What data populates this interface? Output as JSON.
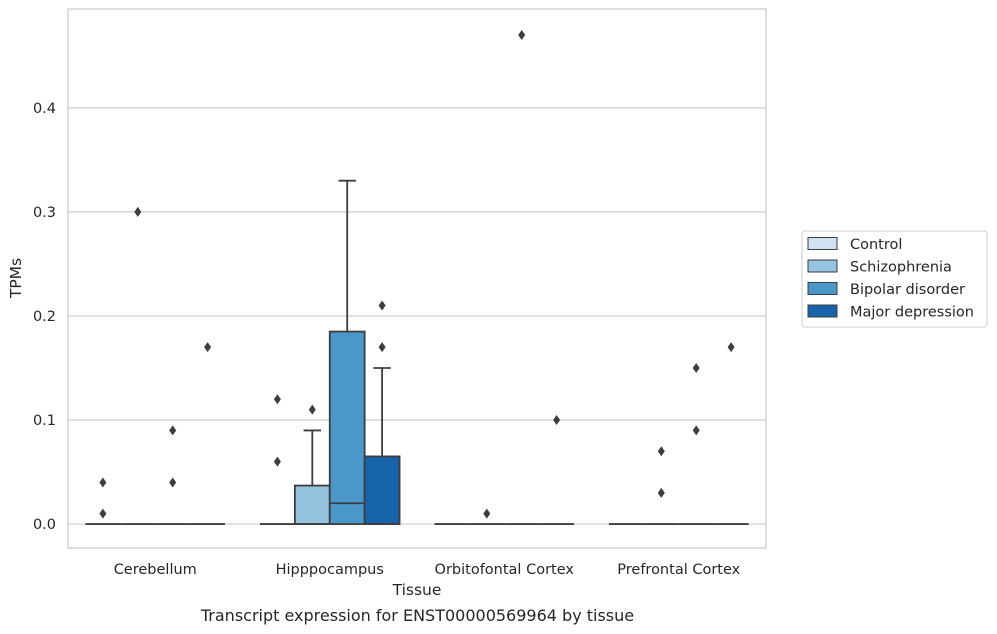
{
  "caption": "Transcript expression for ENST00000569964 by tissue",
  "chart_data": {
    "type": "box",
    "xlabel": "Tissue",
    "ylabel": "TPMs",
    "ylim": [
      -0.023,
      0.495
    ],
    "yticks": [
      0.0,
      0.1,
      0.2,
      0.3,
      0.4
    ],
    "ytick_labels": [
      "0.0",
      "0.1",
      "0.2",
      "0.3",
      "0.4"
    ],
    "grid": "horizontal",
    "legend_position": "right",
    "categories": [
      "Cerebellum",
      "Hipppocampus",
      "Orbitofontal Cortex",
      "Prefrontal Cortex"
    ],
    "series": [
      {
        "name": "Control",
        "color": "#d0e1f2"
      },
      {
        "name": "Schizophrenia",
        "color": "#94c4df"
      },
      {
        "name": "Bipolar disorder",
        "color": "#4a98c9"
      },
      {
        "name": "Major depression",
        "color": "#1764ab"
      }
    ],
    "boxes": [
      {
        "category": 0,
        "series": 0,
        "q1": 0,
        "median": 0,
        "q3": 0,
        "whislo": 0,
        "whishi": 0,
        "fliers": [
          0.04,
          0.01
        ]
      },
      {
        "category": 0,
        "series": 1,
        "q1": 0,
        "median": 0,
        "q3": 0,
        "whislo": 0,
        "whishi": 0,
        "fliers": [
          0.3
        ]
      },
      {
        "category": 0,
        "series": 2,
        "q1": 0,
        "median": 0,
        "q3": 0,
        "whislo": 0,
        "whishi": 0,
        "fliers": [
          0.09,
          0.04
        ]
      },
      {
        "category": 0,
        "series": 3,
        "q1": 0,
        "median": 0,
        "q3": 0,
        "whislo": 0,
        "whishi": 0,
        "fliers": [
          0.17
        ]
      },
      {
        "category": 1,
        "series": 0,
        "q1": 0,
        "median": 0,
        "q3": 0,
        "whislo": 0,
        "whishi": 0,
        "fliers": [
          0.12,
          0.06
        ]
      },
      {
        "category": 1,
        "series": 1,
        "q1": 0,
        "median": 0,
        "q3": 0.037,
        "whislo": 0,
        "whishi": 0.09,
        "fliers": [
          0.11
        ]
      },
      {
        "category": 1,
        "series": 2,
        "q1": 0,
        "median": 0.02,
        "q3": 0.185,
        "whislo": 0,
        "whishi": 0.33,
        "fliers": []
      },
      {
        "category": 1,
        "series": 3,
        "q1": 0,
        "median": 0,
        "q3": 0.065,
        "whislo": 0,
        "whishi": 0.15,
        "fliers": [
          0.21,
          0.17
        ]
      },
      {
        "category": 2,
        "series": 0,
        "q1": 0,
        "median": 0,
        "q3": 0,
        "whislo": 0,
        "whishi": 0,
        "fliers": []
      },
      {
        "category": 2,
        "series": 1,
        "q1": 0,
        "median": 0,
        "q3": 0,
        "whislo": 0,
        "whishi": 0,
        "fliers": [
          0.01
        ]
      },
      {
        "category": 2,
        "series": 2,
        "q1": 0,
        "median": 0,
        "q3": 0,
        "whislo": 0,
        "whishi": 0,
        "fliers": [
          0.47
        ]
      },
      {
        "category": 2,
        "series": 3,
        "q1": 0,
        "median": 0,
        "q3": 0,
        "whislo": 0,
        "whishi": 0,
        "fliers": [
          0.1
        ]
      },
      {
        "category": 3,
        "series": 0,
        "q1": 0,
        "median": 0,
        "q3": 0,
        "whislo": 0,
        "whishi": 0,
        "fliers": []
      },
      {
        "category": 3,
        "series": 1,
        "q1": 0,
        "median": 0,
        "q3": 0,
        "whislo": 0,
        "whishi": 0,
        "fliers": [
          0.07,
          0.03
        ]
      },
      {
        "category": 3,
        "series": 2,
        "q1": 0,
        "median": 0,
        "q3": 0,
        "whislo": 0,
        "whishi": 0,
        "fliers": [
          0.15,
          0.09
        ]
      },
      {
        "category": 3,
        "series": 3,
        "q1": 0,
        "median": 0,
        "q3": 0,
        "whislo": 0,
        "whishi": 0,
        "fliers": [
          0.17
        ]
      }
    ]
  }
}
